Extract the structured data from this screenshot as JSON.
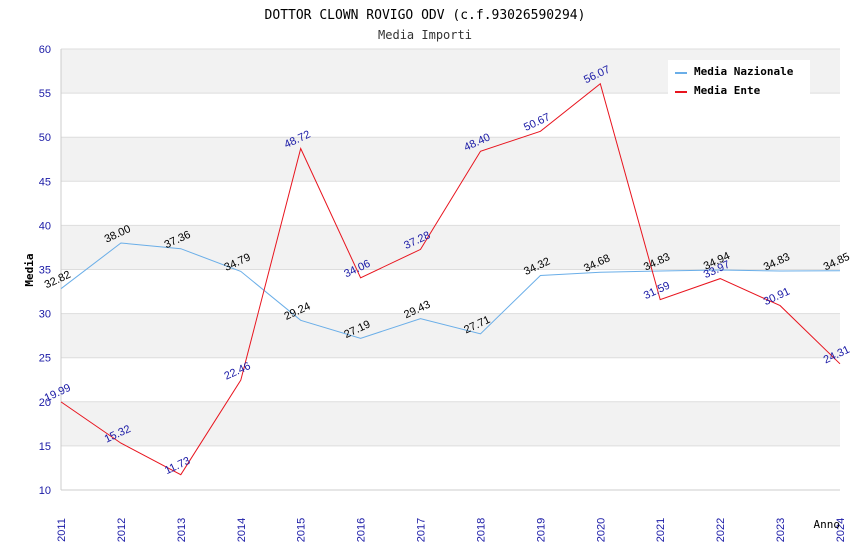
{
  "chart_data": {
    "type": "line",
    "title": "DOTTOR CLOWN ROVIGO ODV (c.f.93026590294)",
    "subtitle": "Media Importi",
    "xlabel": "Anno",
    "ylabel": "Media",
    "ylim": [
      10,
      60
    ],
    "yticks": [
      10,
      15,
      20,
      25,
      30,
      35,
      40,
      45,
      50,
      55,
      60
    ],
    "x": [
      "2011",
      "2012",
      "2013",
      "2014",
      "2015",
      "2016",
      "2017",
      "2018",
      "2019",
      "2020",
      "2021",
      "2022",
      "2023",
      "2024"
    ],
    "legend_position": "top-right",
    "grid": true,
    "series": [
      {
        "name": "Media Nazionale",
        "color": "#6aaee8",
        "values": [
          32.82,
          38.0,
          37.36,
          34.79,
          29.24,
          27.19,
          29.43,
          27.71,
          34.32,
          34.68,
          34.83,
          34.94,
          34.83,
          34.85
        ],
        "labels": [
          "32.82",
          "38.00",
          "37.36",
          "34.79",
          "29.24",
          "27.19",
          "29.43",
          "27.71",
          "34.32",
          "34.68",
          "34.83",
          "34.94",
          "34.83",
          "34.85"
        ]
      },
      {
        "name": "Media Ente",
        "color": "#e8141e",
        "values": [
          19.99,
          15.32,
          11.73,
          22.46,
          48.72,
          34.06,
          37.28,
          48.4,
          50.67,
          56.07,
          31.59,
          33.97,
          30.91,
          24.31
        ],
        "labels": [
          "19.99",
          "15.32",
          "11.73",
          "22.46",
          "48.72",
          "34.06",
          "37.28",
          "48.40",
          "50.67",
          "56.07",
          "31.59",
          "33.97",
          "30.91",
          "24.31"
        ]
      }
    ]
  }
}
